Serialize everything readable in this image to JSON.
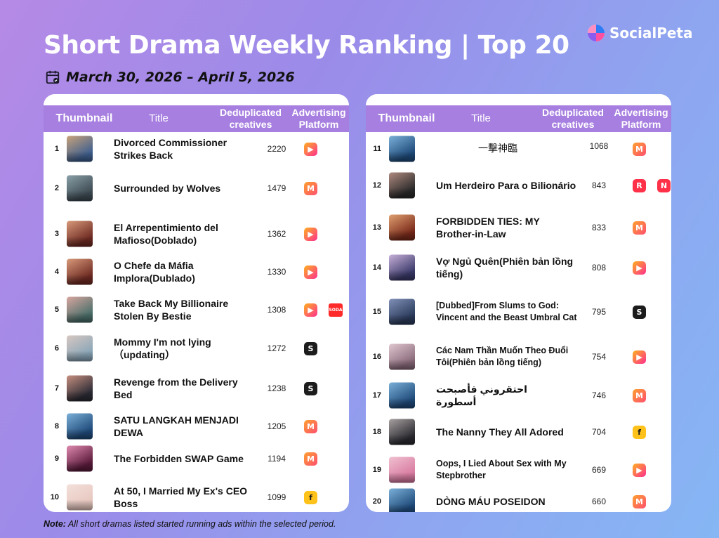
{
  "header": {
    "title": "Short Drama Weekly Ranking | Top 20",
    "date_range": "March 30, 2026 – April 5, 2026",
    "brand": "SocialPeta"
  },
  "table_headers": {
    "thumbnail": "Thumbnail",
    "title": "Title",
    "deduplicated_l1": "Deduplicated",
    "deduplicated_l2": "creatives",
    "platform_l1": "Advertising",
    "platform_l2": "Platform"
  },
  "colors": {
    "header_purple": "#a77fe0",
    "melolo": "#ff7a2f",
    "dramabox": "#ff2f8f",
    "shortmax": "#1c1c1c",
    "reelshort": "#ff3048",
    "flextv": "#ffc21a",
    "soda": "#ff2a2a"
  },
  "left_rows": [
    {
      "rank": "1",
      "title": "Divorced Commissioner Strikes Back",
      "creatives": "2220",
      "platforms": [
        {
          "icon": "dramabox-icon",
          "glyph": "▶",
          "color": "#ff2f8f"
        }
      ],
      "thumb": [
        "#3f5f8f",
        "#c8a27a"
      ]
    },
    {
      "rank": "2",
      "title": "Surrounded by Wolves",
      "creatives": "1479",
      "platforms": [
        {
          "icon": "melolo-icon",
          "glyph": "M",
          "color": "#ff7a2f"
        }
      ],
      "thumb": [
        "#3d4a52",
        "#8aa0a8"
      ]
    },
    {
      "rank": "3",
      "title": "El Arrepentimiento del Mafioso(Doblado)",
      "creatives": "1362",
      "platforms": [
        {
          "icon": "dramabox-icon",
          "glyph": "▶",
          "color": "#ff2f8f"
        }
      ],
      "thumb": [
        "#6e2a22",
        "#d89a7a"
      ]
    },
    {
      "rank": "4",
      "title": "O Chefe da Máfia Implora(Dublado)",
      "creatives": "1330",
      "platforms": [
        {
          "icon": "dramabox-icon",
          "glyph": "▶",
          "color": "#ff2f8f"
        }
      ],
      "thumb": [
        "#6e2a22",
        "#d89a7a"
      ]
    },
    {
      "rank": "5",
      "title": "Take Back My Billionaire Stolen By Bestie",
      "creatives": "1308",
      "platforms": [
        {
          "icon": "dramabox-icon",
          "glyph": "▶",
          "color": "#ff2f8f"
        },
        {
          "icon": "soda-icon",
          "glyph": "SODA",
          "color": "#ff2a2a"
        }
      ],
      "thumb": [
        "#4a6f6a",
        "#d9a6a0"
      ]
    },
    {
      "rank": "6",
      "title": "Mommy I'm not lying （updating）",
      "creatives": "1272",
      "platforms": [
        {
          "icon": "shortmax-icon",
          "glyph": "S",
          "color": "#1c1c1c"
        }
      ],
      "thumb": [
        "#8aa6b8",
        "#d8c8c2"
      ]
    },
    {
      "rank": "7",
      "title": "Revenge from the Delivery Bed",
      "creatives": "1238",
      "platforms": [
        {
          "icon": "shortmax-icon",
          "glyph": "S",
          "color": "#1c1c1c"
        }
      ],
      "thumb": [
        "#2b2b35",
        "#c89080"
      ]
    },
    {
      "rank": "8",
      "title": "SATU LANGKAH MENJADI DEWA",
      "creatives": "1205",
      "platforms": [
        {
          "icon": "melolo-icon",
          "glyph": "M",
          "color": "#ff7a2f"
        }
      ],
      "thumb": [
        "#1f4a7a",
        "#7ab0d8"
      ]
    },
    {
      "rank": "9",
      "title": "The Forbidden SWAP Game",
      "creatives": "1194",
      "platforms": [
        {
          "icon": "melolo-icon",
          "glyph": "M",
          "color": "#ff7a2f"
        }
      ],
      "thumb": [
        "#5a1a3a",
        "#e08ab0"
      ]
    },
    {
      "rank": "10",
      "title": "At 50, I Married My Ex's CEO Boss",
      "creatives": "1099",
      "platforms": [
        {
          "icon": "flextv-icon",
          "glyph": "f",
          "color": "#ffc21a"
        }
      ],
      "thumb": [
        "#e8c8c0",
        "#f3e0da"
      ]
    }
  ],
  "right_rows": [
    {
      "rank": "11",
      "title": "一擊神臨",
      "creatives": "1068",
      "platforms": [
        {
          "icon": "melolo-icon",
          "glyph": "M",
          "color": "#ff7a2f"
        }
      ],
      "thumb": [
        "#1f4a7a",
        "#7ab0d8"
      ]
    },
    {
      "rank": "12",
      "title": "Um Herdeiro Para o Bilionário",
      "creatives": "843",
      "platforms": [
        {
          "icon": "reelshort-icon",
          "glyph": "R",
          "color": "#ff3048"
        },
        {
          "icon": "netshort-icon",
          "glyph": "N",
          "color": "#ff3048"
        }
      ],
      "thumb": [
        "#2a2a2a",
        "#b08a80"
      ]
    },
    {
      "rank": "13",
      "title": "FORBIDDEN TIES: MY Brother-in-Law",
      "creatives": "833",
      "platforms": [
        {
          "icon": "melolo-icon",
          "glyph": "M",
          "color": "#ff7a2f"
        }
      ],
      "thumb": [
        "#7a2a1a",
        "#e0a070"
      ]
    },
    {
      "rank": "14",
      "title": "Vợ Ngủ Quên(Phiên bản lồng tiếng)",
      "creatives": "808",
      "platforms": [
        {
          "icon": "dramabox-icon",
          "glyph": "▶",
          "color": "#ff2f8f"
        }
      ],
      "thumb": [
        "#3a3a6a",
        "#c8b0d8"
      ]
    },
    {
      "rank": "15",
      "title": "[Dubbed]From Slums to God: Vincent and the Beast Umbral Cat",
      "creatives": "795",
      "platforms": [
        {
          "icon": "shortmax-icon",
          "glyph": "S",
          "color": "#1c1c1c"
        }
      ],
      "thumb": [
        "#2a3a5a",
        "#8090b8"
      ]
    },
    {
      "rank": "16",
      "title": "Các Nam Thần Muốn Theo Đuổi Tôi(Phiên bản lồng tiếng)",
      "creatives": "754",
      "platforms": [
        {
          "icon": "dramabox-icon",
          "glyph": "▶",
          "color": "#ff2f8f"
        }
      ],
      "thumb": [
        "#8a6a7a",
        "#e0c8d0"
      ]
    },
    {
      "rank": "17",
      "title": "احتقروني فأصبحت أسطورة",
      "creatives": "746",
      "platforms": [
        {
          "icon": "melolo-icon",
          "glyph": "M",
          "color": "#ff7a2f"
        }
      ],
      "thumb": [
        "#1f4a7a",
        "#7ab0d8"
      ]
    },
    {
      "rank": "18",
      "title": "The Nanny They All Adored",
      "creatives": "704",
      "platforms": [
        {
          "icon": "flextv-icon",
          "glyph": "f",
          "color": "#ffc21a"
        }
      ],
      "thumb": [
        "#2a2a30",
        "#a8a0a0"
      ]
    },
    {
      "rank": "19",
      "title": "Oops, I Lied About Sex with My Stepbrother",
      "creatives": "669",
      "platforms": [
        {
          "icon": "dramabox-icon",
          "glyph": "▶",
          "color": "#ff2f8f"
        }
      ],
      "thumb": [
        "#d87aa0",
        "#f0c0d0"
      ]
    },
    {
      "rank": "20",
      "title": "DÒNG MÁU POSEIDON",
      "creatives": "660",
      "platforms": [
        {
          "icon": "melolo-icon",
          "glyph": "M",
          "color": "#ff7a2f"
        }
      ],
      "thumb": [
        "#1f4a7a",
        "#7ab0d8"
      ]
    }
  ],
  "note": {
    "label": "Note:",
    "text": " All short dramas listed started running ads within the selected period."
  }
}
